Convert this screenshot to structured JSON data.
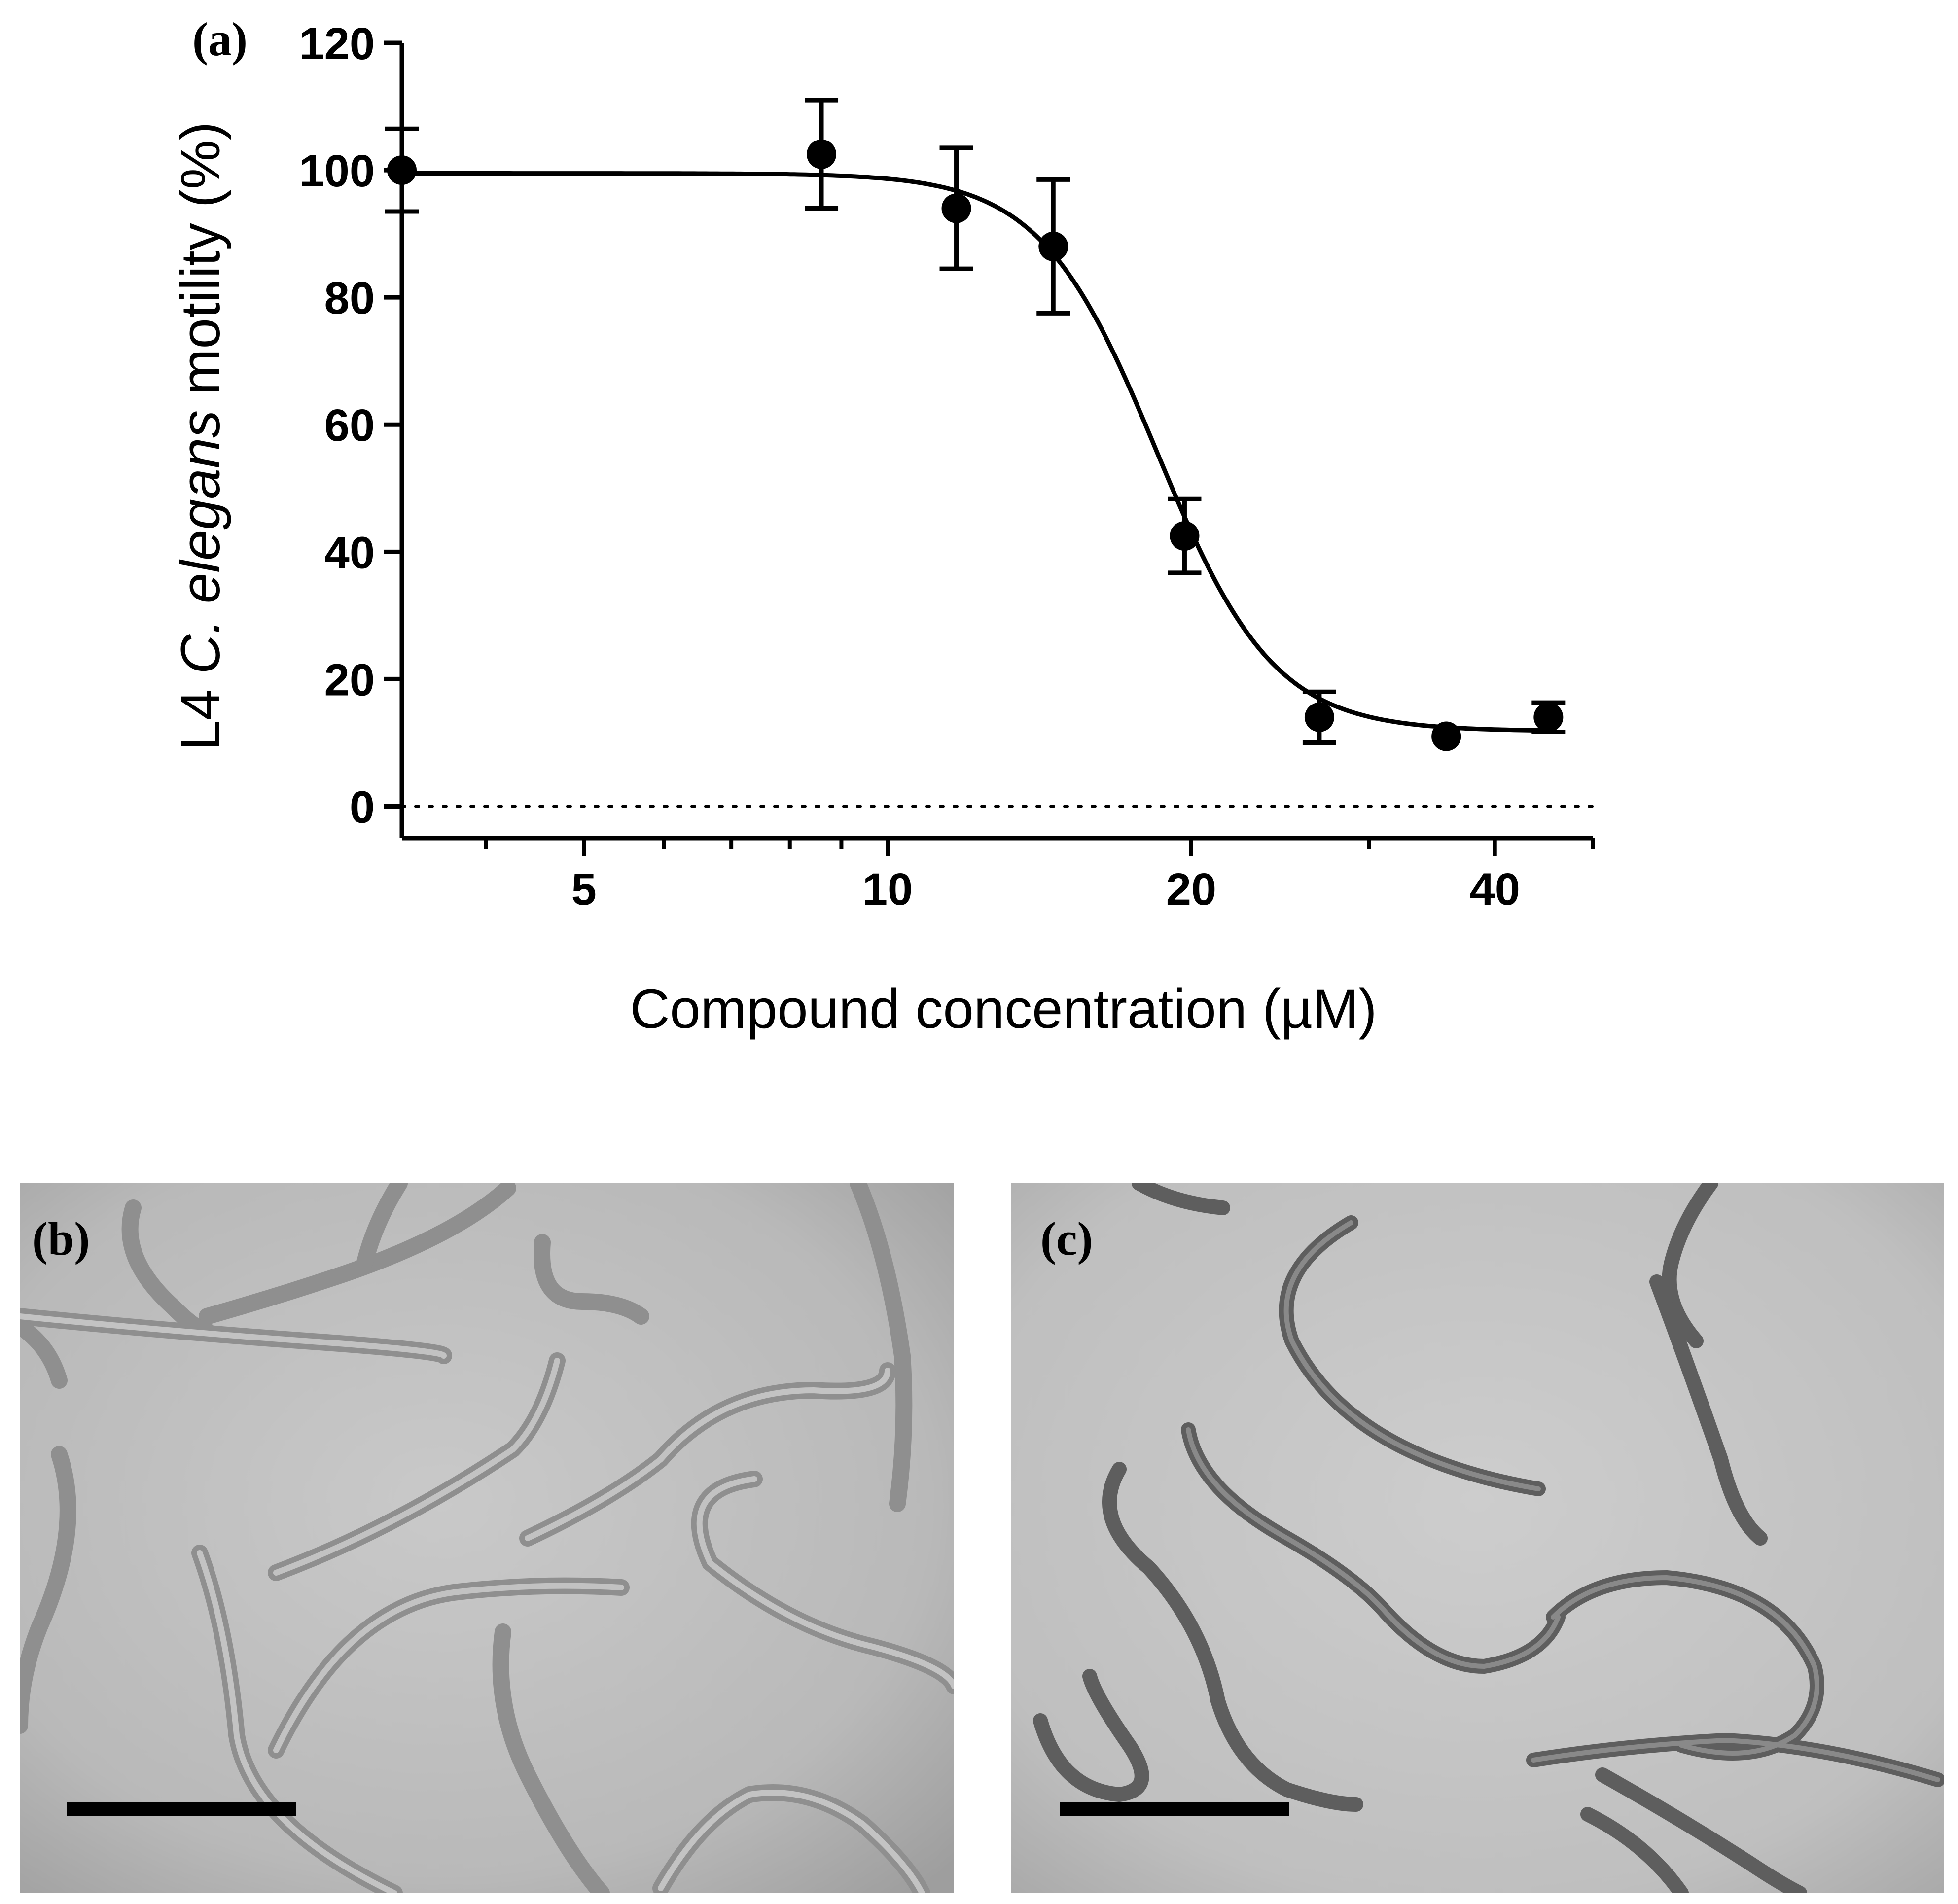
{
  "chart_data": {
    "type": "scatter",
    "panel_label": "(a)",
    "xlabel": "Compound concentration (µM)",
    "ylabel_parts": [
      "L4 ",
      "C. elegans",
      " motility (%)"
    ],
    "x_scale": "log",
    "xlim": [
      3.3,
      50
    ],
    "ylim": [
      -5,
      120
    ],
    "x_ticks": [
      5,
      10,
      20,
      40
    ],
    "x_tick_labels": [
      "5",
      "10",
      "20",
      "40"
    ],
    "y_ticks": [
      0,
      20,
      40,
      60,
      80,
      100,
      120
    ],
    "y_tick_labels": [
      "0",
      "20",
      "40",
      "60",
      "80",
      "100",
      "120"
    ],
    "reference_line": {
      "y": 0,
      "style": "dotted"
    },
    "points": [
      {
        "x": 3.3,
        "y": 100,
        "err": 6.5
      },
      {
        "x": 8.6,
        "y": 102.5,
        "err": 8.5
      },
      {
        "x": 11.7,
        "y": 94,
        "err": 9.5
      },
      {
        "x": 14.6,
        "y": 88,
        "err": 10.5
      },
      {
        "x": 19.7,
        "y": 42.5,
        "err": 5.8
      },
      {
        "x": 26.8,
        "y": 14,
        "err": 4
      },
      {
        "x": 35.8,
        "y": 11,
        "err": 0
      },
      {
        "x": 45.2,
        "y": 14,
        "err": 2.3
      }
    ],
    "fit": {
      "model": "sigmoidal dose-response",
      "top": 99.5,
      "bottom": 11.8,
      "ec50": 18.5,
      "hill": 7.5
    },
    "color": "#000000",
    "grid": false,
    "legend": "none"
  },
  "panels": [
    {
      "id": "b",
      "label": "(b)",
      "content": "micrograph",
      "scale_bar": true
    },
    {
      "id": "c",
      "label": "(c)",
      "content": "micrograph",
      "scale_bar": true
    }
  ]
}
